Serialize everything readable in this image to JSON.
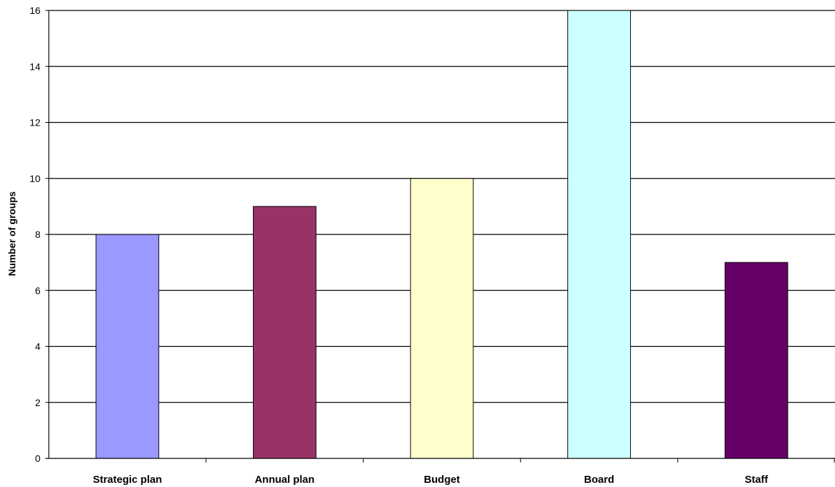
{
  "chart_data": {
    "type": "bar",
    "title": "",
    "xlabel": "",
    "ylabel": "Number of groups",
    "categories": [
      "Strategic plan",
      "Annual plan",
      "Budget",
      "Board",
      "Staff"
    ],
    "values": [
      8,
      9,
      10,
      16,
      7
    ],
    "colors": [
      "#9999ff",
      "#993366",
      "#ffffcc",
      "#ccffff",
      "#660066"
    ],
    "ylim": [
      0,
      16
    ],
    "yticks": [
      "0",
      "2",
      "4",
      "6",
      "8",
      "10",
      "12",
      "14",
      "16"
    ],
    "grid": true,
    "legend": "none"
  }
}
